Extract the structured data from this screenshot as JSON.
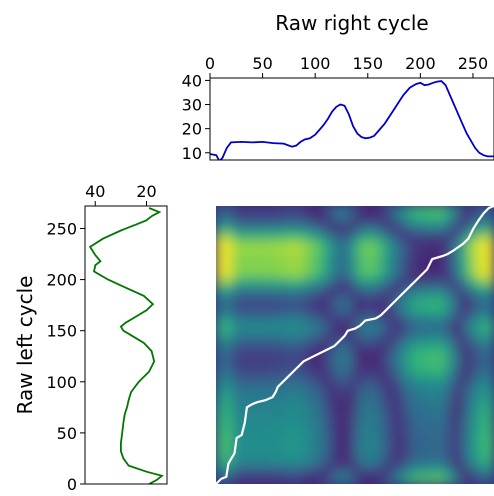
{
  "chart_data": [
    {
      "type": "line",
      "title": "Raw right cycle",
      "xlabel": "",
      "ylabel": "",
      "xlim": [
        0,
        270
      ],
      "ylim": [
        7,
        41
      ],
      "xticks": [
        0,
        50,
        100,
        150,
        200,
        250
      ],
      "yticks": [
        10,
        20,
        30,
        40
      ],
      "x_axis_position": "top",
      "series": [
        {
          "color": "#0000cc",
          "x": [
            0,
            6,
            9,
            12,
            16,
            20,
            30,
            40,
            50,
            60,
            70,
            78,
            82,
            86,
            90,
            95,
            100,
            104,
            108,
            112,
            116,
            120,
            124,
            128,
            132,
            136,
            140,
            144,
            148,
            152,
            156,
            160,
            166,
            172,
            178,
            184,
            190,
            196,
            200,
            204,
            208,
            212,
            216,
            220,
            224,
            228,
            232,
            236,
            240,
            244,
            248,
            252,
            256,
            260,
            264,
            270
          ],
          "y": [
            9.5,
            9,
            6.5,
            8,
            12,
            14.3,
            14.5,
            14.3,
            14.5,
            14,
            13.8,
            12.5,
            13,
            14.5,
            15.5,
            16,
            17.5,
            19.5,
            21.5,
            24,
            27,
            29,
            30,
            29.5,
            26,
            21,
            18,
            16.5,
            16,
            16.3,
            17,
            19,
            22,
            26,
            30,
            34,
            37,
            38.5,
            39,
            38,
            38.3,
            39,
            39.5,
            39.7,
            38,
            34,
            30,
            26,
            22,
            18,
            15,
            12,
            10,
            9,
            8.5,
            8.5
          ]
        }
      ]
    },
    {
      "type": "line",
      "title": "",
      "xlabel": "",
      "ylabel": "Raw left cycle",
      "xlim": [
        44,
        12
      ],
      "ylim": [
        0,
        272
      ],
      "xticks": [
        40,
        20
      ],
      "yticks": [
        0,
        50,
        100,
        150,
        200,
        250
      ],
      "x_axis_position": "top",
      "orientation": "vertical",
      "series": [
        {
          "color": "#007700",
          "value": [
            19,
            16,
            14,
            20,
            27,
            29,
            30,
            30,
            29.5,
            29,
            28.5,
            28,
            27.5,
            27,
            26,
            23,
            19,
            17,
            18,
            21,
            25,
            29,
            30,
            28,
            24,
            20,
            17.5,
            21,
            28,
            35,
            40.5,
            40,
            38,
            40,
            42,
            37,
            30,
            24,
            20,
            18,
            15,
            19
          ],
          "index": [
            0,
            4,
            8,
            12,
            18,
            25,
            32,
            40,
            50,
            60,
            68,
            72,
            76,
            82,
            90,
            100,
            110,
            120,
            130,
            138,
            144,
            150,
            154,
            158,
            164,
            170,
            176,
            184,
            192,
            200,
            208,
            214,
            218,
            224,
            232,
            240,
            248,
            254,
            258,
            262,
            266,
            270
          ]
        }
      ]
    },
    {
      "type": "heatmap",
      "title": "",
      "xlabel": "",
      "ylabel": "",
      "xlim": [
        0,
        270
      ],
      "ylim": [
        0,
        272
      ],
      "colormap": "viridis",
      "warping_path": {
        "color": "#ffffff",
        "x": [
          0,
          5,
          10,
          12,
          15,
          18,
          20,
          25,
          28,
          30,
          35,
          40,
          48,
          55,
          58,
          60,
          65,
          70,
          75,
          80,
          85,
          95,
          105,
          115,
          120,
          125,
          128,
          135,
          140,
          145,
          155,
          160,
          165,
          170,
          175,
          180,
          185,
          190,
          195,
          200,
          205,
          210,
          220,
          225,
          230,
          240,
          245,
          250,
          255,
          260,
          265,
          270
        ],
        "y": [
          0,
          5,
          7,
          20,
          25,
          30,
          45,
          48,
          60,
          75,
          78,
          80,
          82,
          85,
          90,
          95,
          100,
          105,
          110,
          115,
          120,
          125,
          130,
          135,
          140,
          145,
          150,
          152,
          155,
          160,
          162,
          165,
          170,
          175,
          180,
          185,
          190,
          195,
          200,
          205,
          210,
          220,
          223,
          225,
          228,
          235,
          240,
          250,
          258,
          265,
          270,
          272
        ]
      }
    }
  ]
}
